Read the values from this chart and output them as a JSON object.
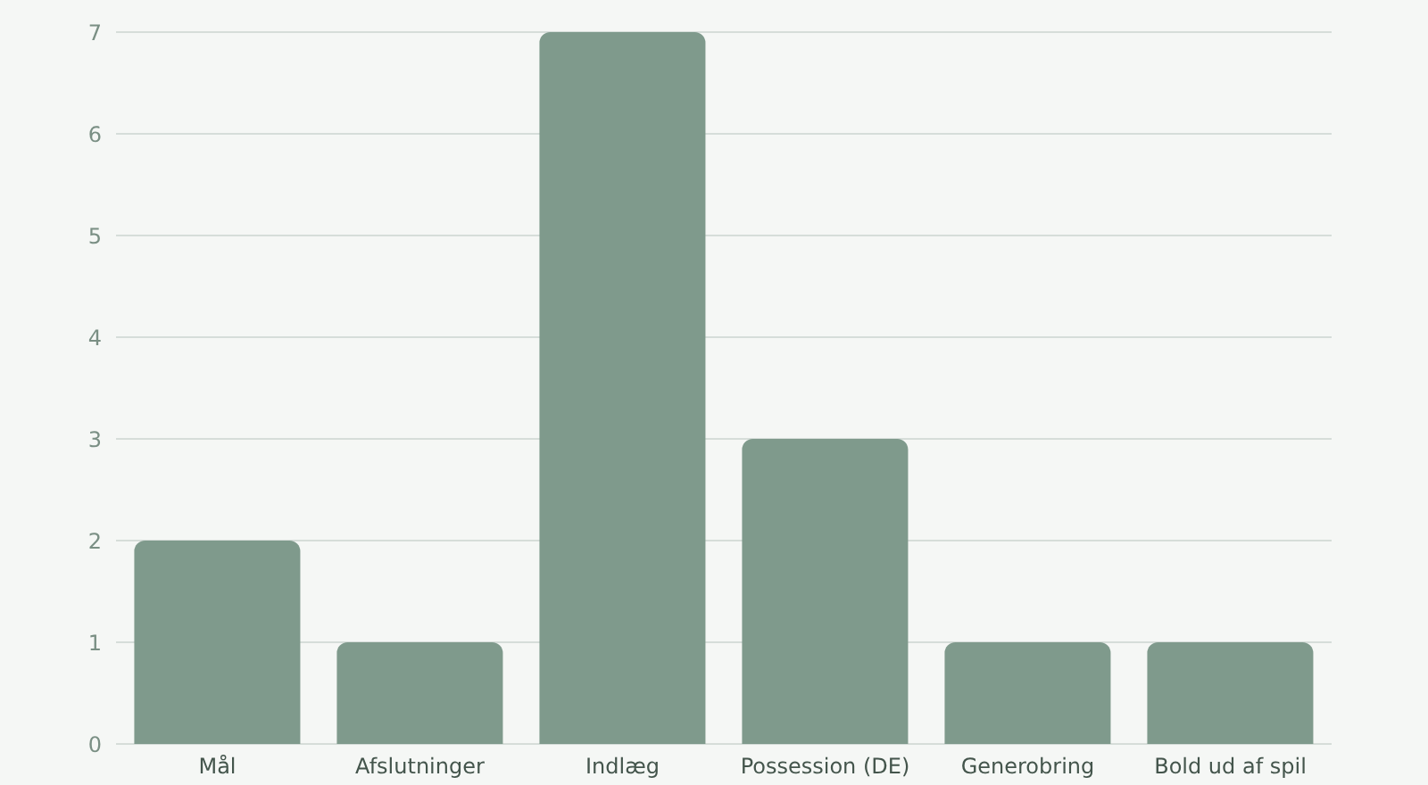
{
  "chart_data": {
    "type": "bar",
    "categories": [
      "Mål",
      "Afslutninger",
      "Indlæg",
      "Possession (DE)",
      "Generobring",
      "Bold ud af spil"
    ],
    "values": [
      2,
      1,
      7,
      3,
      1,
      1
    ],
    "color": "#7f9a8c",
    "ylim": [
      0,
      7
    ],
    "yticks": [
      0,
      1,
      2,
      3,
      4,
      5,
      6,
      7
    ],
    "grid": "y"
  }
}
